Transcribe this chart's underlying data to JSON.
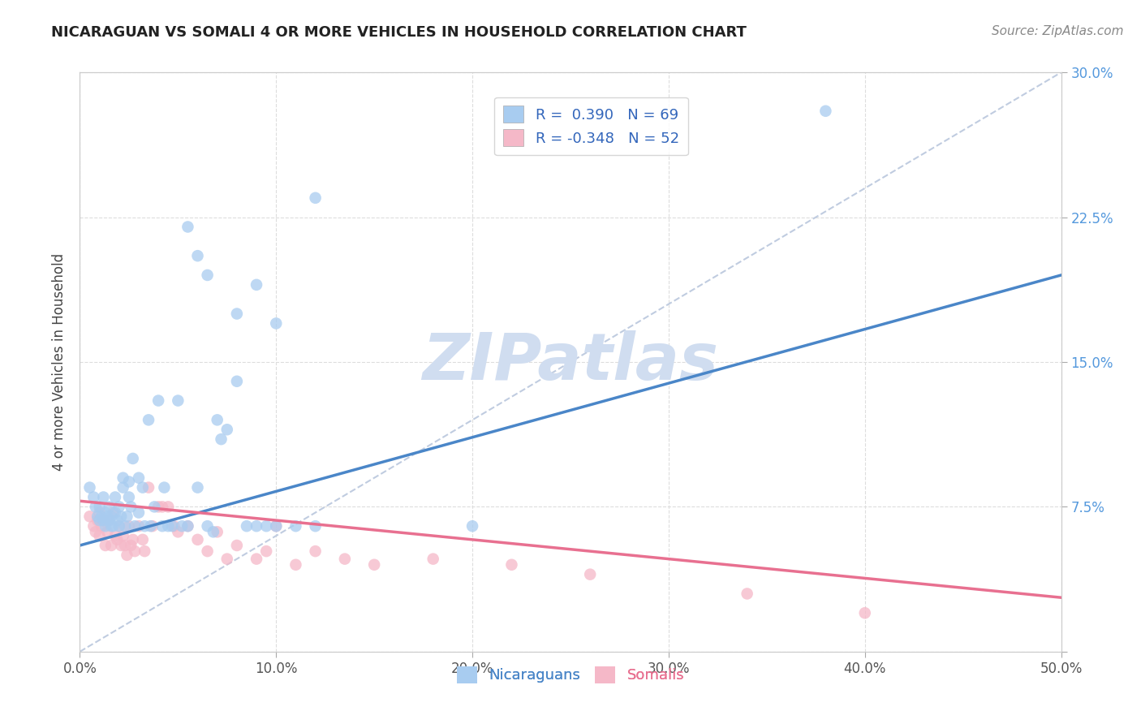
{
  "title": "NICARAGUAN VS SOMALI 4 OR MORE VEHICLES IN HOUSEHOLD CORRELATION CHART",
  "source": "Source: ZipAtlas.com",
  "ylabel": "4 or more Vehicles in Household",
  "nicaraguan_R": 0.39,
  "nicaraguan_N": 69,
  "somali_R": -0.348,
  "somali_N": 52,
  "blue_color": "#A8CCF0",
  "pink_color": "#F5B8C8",
  "blue_line_color": "#4A86C8",
  "pink_line_color": "#E87090",
  "dashed_line_color": "#C0CCE0",
  "watermark_text": "ZIPatlas",
  "watermark_color": "#D0DDF0",
  "xlim": [
    0.0,
    0.5
  ],
  "ylim": [
    0.0,
    0.3
  ],
  "xtick_positions": [
    0.0,
    0.1,
    0.2,
    0.3,
    0.4,
    0.5
  ],
  "xtick_labels": [
    "0.0%",
    "10.0%",
    "20.0%",
    "30.0%",
    "40.0%",
    "50.0%"
  ],
  "ytick_positions": [
    0.0,
    0.075,
    0.15,
    0.225,
    0.3
  ],
  "ytick_labels": [
    "",
    "7.5%",
    "15.0%",
    "22.5%",
    "30.0%"
  ],
  "background_color": "#FFFFFF",
  "grid_color": "#DDDDDD",
  "blue_trend_x": [
    0.0,
    0.5
  ],
  "blue_trend_y": [
    0.055,
    0.195
  ],
  "pink_trend_x": [
    0.0,
    0.5
  ],
  "pink_trend_y": [
    0.078,
    0.028
  ],
  "dash_trend_x": [
    0.0,
    0.5
  ],
  "dash_trend_y": [
    0.0,
    0.3
  ],
  "nic_x": [
    0.005,
    0.007,
    0.008,
    0.009,
    0.01,
    0.01,
    0.011,
    0.012,
    0.012,
    0.013,
    0.013,
    0.014,
    0.015,
    0.015,
    0.016,
    0.016,
    0.017,
    0.018,
    0.018,
    0.019,
    0.02,
    0.02,
    0.021,
    0.022,
    0.022,
    0.023,
    0.024,
    0.025,
    0.025,
    0.026,
    0.027,
    0.028,
    0.03,
    0.03,
    0.032,
    0.033,
    0.035,
    0.036,
    0.038,
    0.04,
    0.042,
    0.043,
    0.045,
    0.047,
    0.05,
    0.052,
    0.055,
    0.06,
    0.065,
    0.068,
    0.07,
    0.072,
    0.075,
    0.08,
    0.085,
    0.09,
    0.095,
    0.1,
    0.11,
    0.12,
    0.055,
    0.06,
    0.065,
    0.08,
    0.09,
    0.1,
    0.12,
    0.2,
    0.38
  ],
  "nic_y": [
    0.085,
    0.08,
    0.075,
    0.07,
    0.075,
    0.068,
    0.07,
    0.08,
    0.068,
    0.072,
    0.065,
    0.07,
    0.068,
    0.075,
    0.065,
    0.07,
    0.065,
    0.08,
    0.072,
    0.068,
    0.075,
    0.065,
    0.07,
    0.09,
    0.085,
    0.065,
    0.07,
    0.08,
    0.088,
    0.075,
    0.1,
    0.065,
    0.072,
    0.09,
    0.085,
    0.065,
    0.12,
    0.065,
    0.075,
    0.13,
    0.065,
    0.085,
    0.065,
    0.065,
    0.13,
    0.065,
    0.065,
    0.085,
    0.065,
    0.062,
    0.12,
    0.11,
    0.115,
    0.14,
    0.065,
    0.065,
    0.065,
    0.065,
    0.065,
    0.065,
    0.22,
    0.205,
    0.195,
    0.175,
    0.19,
    0.17,
    0.235,
    0.065,
    0.28
  ],
  "som_x": [
    0.005,
    0.007,
    0.008,
    0.009,
    0.01,
    0.01,
    0.011,
    0.012,
    0.013,
    0.014,
    0.015,
    0.016,
    0.017,
    0.018,
    0.019,
    0.02,
    0.021,
    0.022,
    0.023,
    0.024,
    0.025,
    0.026,
    0.027,
    0.028,
    0.03,
    0.032,
    0.033,
    0.035,
    0.037,
    0.04,
    0.042,
    0.045,
    0.048,
    0.05,
    0.055,
    0.06,
    0.065,
    0.07,
    0.075,
    0.08,
    0.09,
    0.095,
    0.1,
    0.11,
    0.12,
    0.135,
    0.15,
    0.18,
    0.22,
    0.26,
    0.34,
    0.4
  ],
  "som_y": [
    0.07,
    0.065,
    0.062,
    0.068,
    0.072,
    0.06,
    0.065,
    0.068,
    0.055,
    0.062,
    0.068,
    0.055,
    0.072,
    0.06,
    0.058,
    0.065,
    0.055,
    0.06,
    0.055,
    0.05,
    0.065,
    0.055,
    0.058,
    0.052,
    0.065,
    0.058,
    0.052,
    0.085,
    0.065,
    0.075,
    0.075,
    0.075,
    0.065,
    0.062,
    0.065,
    0.058,
    0.052,
    0.062,
    0.048,
    0.055,
    0.048,
    0.052,
    0.065,
    0.045,
    0.052,
    0.048,
    0.045,
    0.048,
    0.045,
    0.04,
    0.03,
    0.02
  ]
}
